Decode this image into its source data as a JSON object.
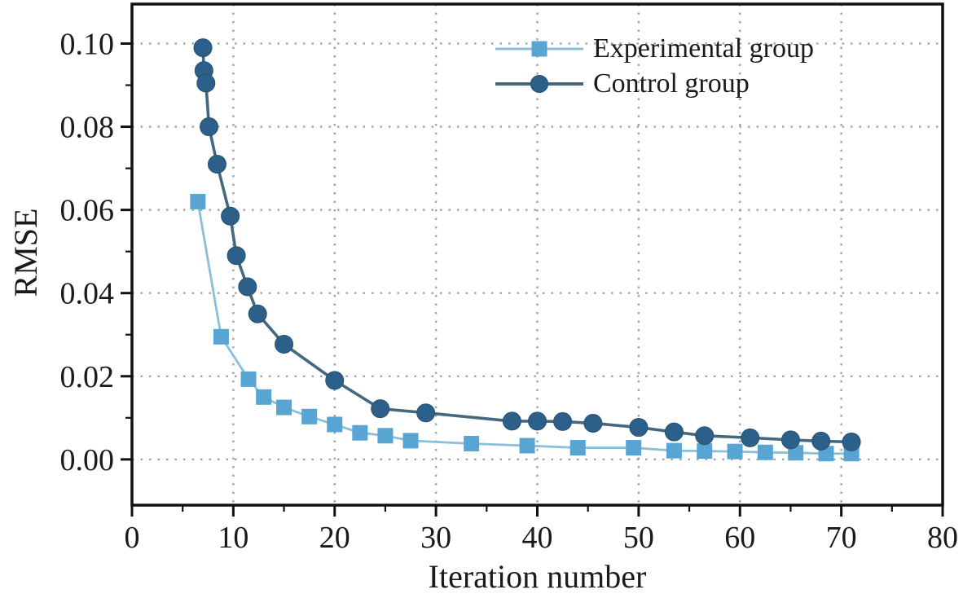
{
  "chart_data": {
    "type": "line",
    "title": "",
    "xlabel": "Iteration number",
    "ylabel": "RMSE",
    "xlim": [
      0,
      80
    ],
    "ylim": [
      -0.011,
      0.1095
    ],
    "x_tick_labels": [
      "0",
      "10",
      "20",
      "30",
      "40",
      "50",
      "60",
      "70",
      "80"
    ],
    "x_major_ticks": [
      0,
      10,
      20,
      30,
      40,
      50,
      60,
      70,
      80
    ],
    "x_minor_ticks": [
      5,
      15,
      25,
      35,
      45,
      55,
      65,
      75
    ],
    "y_tick_labels": [
      "0.00",
      "0.02",
      "0.04",
      "0.06",
      "0.08",
      "0.10"
    ],
    "y_major_ticks": [
      0,
      0.02,
      0.04,
      0.06,
      0.08,
      0.1
    ],
    "y_minor_ticks": [
      0.01,
      0.03,
      0.05,
      0.07,
      0.09
    ],
    "grid": "dotted gray at major ticks, both axes",
    "legend_position": "top-right inside",
    "colors": {
      "experimental_marker": "#58a5d3",
      "experimental_line": "#8abfdc",
      "control_marker": "#2c5f8a",
      "control_line": "#44697f",
      "grid": "#a4a4a4",
      "axis": "#111111",
      "text": "#1a1a1a"
    },
    "series": [
      {
        "name": "Experimental group",
        "marker": "square",
        "marker_color": "#58a5d3",
        "line_color": "#8abfdc",
        "x": [
          6.5,
          8.8,
          11.5,
          13,
          15,
          17.5,
          20,
          22.5,
          25,
          27.5,
          33.5,
          39,
          44,
          49.5,
          53.5,
          56.5,
          59.5,
          62.5,
          65.5,
          68.5,
          71
        ],
        "y": [
          0.062,
          0.0295,
          0.0193,
          0.015,
          0.0125,
          0.0103,
          0.0084,
          0.0064,
          0.0057,
          0.0045,
          0.0038,
          0.0033,
          0.0028,
          0.0028,
          0.0021,
          0.002,
          0.0019,
          0.0017,
          0.0016,
          0.0014,
          0.0014
        ]
      },
      {
        "name": "Control group",
        "marker": "circle",
        "marker_color": "#2c5f8a",
        "line_color": "#44697f",
        "x": [
          7,
          7.1,
          7.3,
          7.6,
          8.4,
          9.7,
          10.3,
          11.4,
          12.4,
          15,
          20,
          24.5,
          29,
          37.5,
          40,
          42.5,
          45.5,
          50,
          53.5,
          56.5,
          61,
          65,
          68,
          71
        ],
        "y": [
          0.099,
          0.0935,
          0.0905,
          0.08,
          0.071,
          0.0585,
          0.049,
          0.0415,
          0.035,
          0.0277,
          0.019,
          0.0122,
          0.0112,
          0.0092,
          0.0092,
          0.0091,
          0.0087,
          0.0077,
          0.0066,
          0.0057,
          0.0052,
          0.0047,
          0.0044,
          0.0042
        ]
      }
    ]
  }
}
